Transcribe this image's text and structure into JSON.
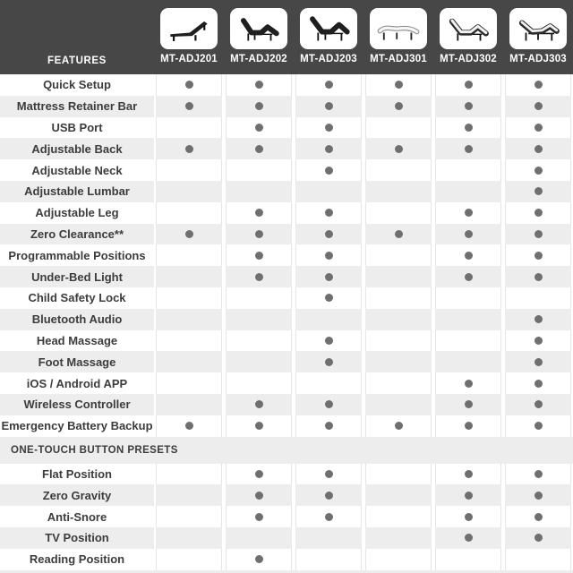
{
  "colors": {
    "header_bg": "#474747",
    "stripe": "#ededed",
    "row_white": "#ffffff",
    "dot": "#6f6f6f",
    "cell_border": "#e5e5e5",
    "text_dark": "#3c3c3c",
    "text_light": "#ffffff"
  },
  "header": {
    "features_label": "FEATURES",
    "models": [
      {
        "name": "MT-ADJ201",
        "icon": "dark-bed-head-incline-icon"
      },
      {
        "name": "MT-ADJ202",
        "icon": "dark-bed-head-foot-raised-icon"
      },
      {
        "name": "MT-ADJ203",
        "icon": "dark-bed-head-foot-raised-high-icon"
      },
      {
        "name": "MT-ADJ301",
        "icon": "light-bed-flat-icon"
      },
      {
        "name": "MT-ADJ302",
        "icon": "light-bed-head-foot-raised-icon"
      },
      {
        "name": "MT-ADJ303",
        "icon": "light-bed-head-raised-dark-base-icon"
      }
    ]
  },
  "table": {
    "sections": [
      {
        "title": null,
        "rows": [
          {
            "feature": "Quick Setup",
            "availability": [
              1,
              1,
              1,
              1,
              1,
              1
            ]
          },
          {
            "feature": "Mattress Retainer Bar",
            "availability": [
              1,
              1,
              1,
              1,
              1,
              1
            ]
          },
          {
            "feature": "USB Port",
            "availability": [
              0,
              1,
              1,
              0,
              1,
              1
            ]
          },
          {
            "feature": "Adjustable Back",
            "availability": [
              1,
              1,
              1,
              1,
              1,
              1
            ]
          },
          {
            "feature": "Adjustable Neck",
            "availability": [
              0,
              0,
              1,
              0,
              0,
              1
            ]
          },
          {
            "feature": "Adjustable Lumbar",
            "availability": [
              0,
              0,
              0,
              0,
              0,
              1
            ]
          },
          {
            "feature": "Adjustable Leg",
            "availability": [
              0,
              1,
              1,
              0,
              1,
              1
            ]
          },
          {
            "feature": "Zero Clearance**",
            "availability": [
              1,
              1,
              1,
              1,
              1,
              1
            ]
          },
          {
            "feature": "Programmable Positions",
            "availability": [
              0,
              1,
              1,
              0,
              1,
              1
            ]
          },
          {
            "feature": "Under-Bed Light",
            "availability": [
              0,
              1,
              1,
              0,
              1,
              1
            ]
          },
          {
            "feature": "Child Safety Lock",
            "availability": [
              0,
              0,
              1,
              0,
              0,
              0
            ]
          },
          {
            "feature": "Bluetooth Audio",
            "availability": [
              0,
              0,
              0,
              0,
              0,
              1
            ]
          },
          {
            "feature": "Head Massage",
            "availability": [
              0,
              0,
              1,
              0,
              0,
              1
            ]
          },
          {
            "feature": "Foot Massage",
            "availability": [
              0,
              0,
              1,
              0,
              0,
              1
            ]
          },
          {
            "feature": "iOS / Android APP",
            "availability": [
              0,
              0,
              0,
              0,
              1,
              1
            ]
          },
          {
            "feature": "Wireless Controller",
            "availability": [
              0,
              1,
              1,
              0,
              1,
              1
            ]
          },
          {
            "feature": "Emergency Battery Backup",
            "availability": [
              1,
              1,
              1,
              1,
              1,
              1
            ]
          }
        ]
      },
      {
        "title": "ONE-TOUCH BUTTON PRESETS",
        "rows": [
          {
            "feature": "Flat Position",
            "availability": [
              0,
              1,
              1,
              0,
              1,
              1
            ]
          },
          {
            "feature": "Zero Gravity",
            "availability": [
              0,
              1,
              1,
              0,
              1,
              1
            ]
          },
          {
            "feature": "Anti-Snore",
            "availability": [
              0,
              1,
              1,
              0,
              1,
              1
            ]
          },
          {
            "feature": "TV Position",
            "availability": [
              0,
              0,
              0,
              0,
              1,
              1
            ]
          },
          {
            "feature": "Reading Position",
            "availability": [
              0,
              1,
              0,
              0,
              0,
              0
            ]
          }
        ]
      }
    ]
  }
}
